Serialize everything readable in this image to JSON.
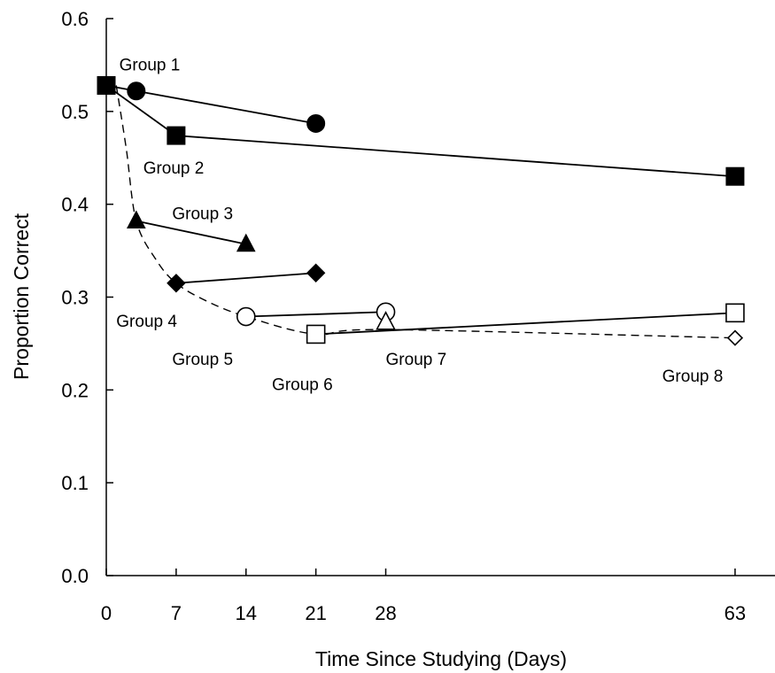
{
  "chart_data": {
    "type": "line",
    "title": "",
    "xlabel": "Time Since Studying (Days)",
    "ylabel": "Proportion Correct",
    "xlim": [
      0,
      67
    ],
    "ylim": [
      0,
      0.6
    ],
    "x_ticks": [
      0,
      7,
      14,
      21,
      28,
      63
    ],
    "x_tick_labels": [
      "0",
      "7",
      "14",
      "21",
      "28",
      "63"
    ],
    "y_ticks": [
      0,
      0.1,
      0.2,
      0.3,
      0.4,
      0.5,
      0.6
    ],
    "y_tick_labels": [
      "0.0",
      "0.1",
      "0.2",
      "0.3",
      "0.4",
      "0.5",
      "0.6"
    ],
    "grid": false,
    "colors": {
      "ink": "#000000",
      "background": "#ffffff"
    },
    "series": [
      {
        "name": "Group 1",
        "marker": "filled-circle",
        "line": "solid",
        "points": [
          {
            "x": 0,
            "y": 0.528
          },
          {
            "x": 3,
            "y": 0.522
          },
          {
            "x": 21,
            "y": 0.487
          }
        ]
      },
      {
        "name": "Group 2",
        "marker": "filled-square",
        "line": "solid",
        "points": [
          {
            "x": 0,
            "y": 0.528
          },
          {
            "x": 7,
            "y": 0.474
          },
          {
            "x": 63,
            "y": 0.43
          }
        ]
      },
      {
        "name": "Group 3",
        "marker": "filled-triangle",
        "line": "solid",
        "points": [
          {
            "x": 3,
            "y": 0.382
          },
          {
            "x": 14,
            "y": 0.357
          }
        ]
      },
      {
        "name": "Group 4",
        "marker": "filled-diamond",
        "line": "solid",
        "points": [
          {
            "x": 7,
            "y": 0.315
          },
          {
            "x": 21,
            "y": 0.326
          }
        ]
      },
      {
        "name": "Group 5",
        "marker": "open-circle",
        "line": "solid",
        "points": [
          {
            "x": 14,
            "y": 0.279
          },
          {
            "x": 28,
            "y": 0.284
          }
        ]
      },
      {
        "name": "Group 6",
        "marker": "open-square",
        "line": "solid",
        "points": [
          {
            "x": 21,
            "y": 0.26
          },
          {
            "x": 63,
            "y": 0.283
          }
        ]
      },
      {
        "name": "Group 7",
        "marker": "open-triangle",
        "line": "none",
        "points": [
          {
            "x": 28,
            "y": 0.273
          }
        ]
      },
      {
        "name": "Group 8",
        "marker": "open-diamond",
        "line": "none",
        "points": [
          {
            "x": 63,
            "y": 0.256
          }
        ]
      }
    ],
    "retention_curve": {
      "line": "dashed",
      "points": [
        {
          "x": 1,
          "y": 0.528
        },
        {
          "x": 2,
          "y": 0.46
        },
        {
          "x": 3,
          "y": 0.382
        },
        {
          "x": 5,
          "y": 0.34
        },
        {
          "x": 7,
          "y": 0.315
        },
        {
          "x": 10,
          "y": 0.296
        },
        {
          "x": 14,
          "y": 0.279
        },
        {
          "x": 21,
          "y": 0.26
        },
        {
          "x": 28,
          "y": 0.265
        },
        {
          "x": 63,
          "y": 0.256
        }
      ]
    },
    "annotations": [
      {
        "text": "Group 1",
        "x": 1.3,
        "y": 0.544,
        "anchor": "start"
      },
      {
        "text": "Group 2",
        "x": 3.7,
        "y": 0.433,
        "anchor": "start"
      },
      {
        "text": "Group 3",
        "x": 6.6,
        "y": 0.384,
        "anchor": "start"
      },
      {
        "text": "Group 4",
        "x": 1.0,
        "y": 0.268,
        "anchor": "start"
      },
      {
        "text": "Group 5",
        "x": 6.6,
        "y": 0.227,
        "anchor": "start"
      },
      {
        "text": "Group 6",
        "x": 16.6,
        "y": 0.2,
        "anchor": "start"
      },
      {
        "text": "Group 7",
        "x": 28.0,
        "y": 0.227,
        "anchor": "start"
      },
      {
        "text": "Group 8",
        "x": 55.7,
        "y": 0.209,
        "anchor": "start"
      }
    ]
  }
}
